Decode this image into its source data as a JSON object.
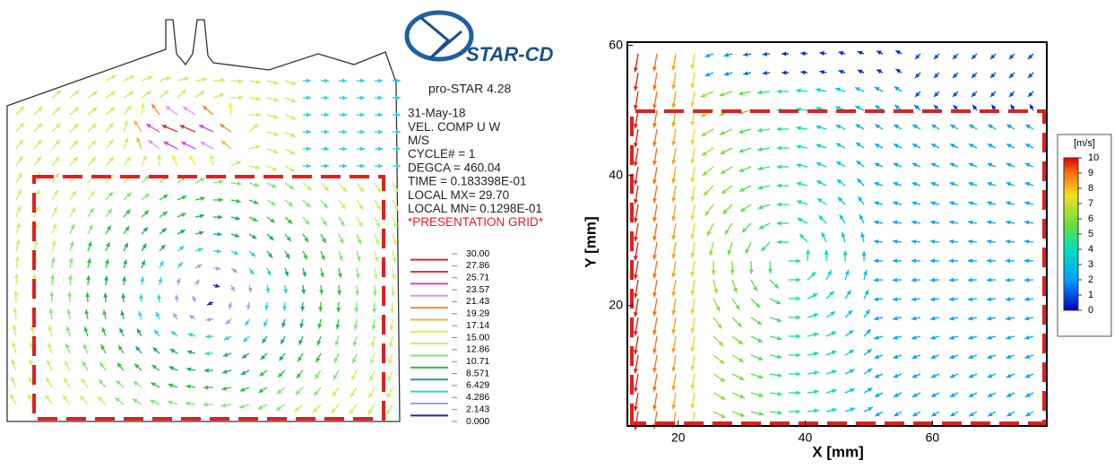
{
  "chart_data": [
    {
      "type": "vector-field",
      "logo": "STAR-CD",
      "subtitle": "pro-STAR 4.28",
      "info": [
        "31-May-18",
        "VEL. COMP  U W",
        "M/S",
        "CYCLE# =      1",
        "DEGCA  =   460.04",
        "TIME = 0.183398E-01",
        "LOCAL MX=  29.70",
        "LOCAL MN= 0.1298E-01"
      ],
      "note": "*PRESENTATION GRID*",
      "legend_ticks": [
        {
          "value": 30,
          "label": "30.00"
        },
        {
          "value": 27.86,
          "label": "27.86"
        },
        {
          "value": 25.71,
          "label": "25.71"
        },
        {
          "value": 23.57,
          "label": "23.57"
        },
        {
          "value": 21.43,
          "label": "21.43"
        },
        {
          "value": 19.29,
          "label": "19.29"
        },
        {
          "value": 17.14,
          "label": "17.14"
        },
        {
          "value": 15,
          "label": "15.00"
        },
        {
          "value": 12.86,
          "label": "12.86"
        },
        {
          "value": 10.71,
          "label": "10.71"
        },
        8.571,
        6.429,
        4.286,
        2.143,
        {
          "value": 0,
          "label": "0.000"
        }
      ],
      "legend_colors": [
        "#e8262c",
        "#f0303a",
        "#e040e0",
        "#f090e0",
        "#f58a3a",
        "#f5b040",
        "#f0f030",
        "#c8f060",
        "#80e870",
        "#30c040",
        "#20a090",
        "#30d0e0",
        "#a0a0f0",
        "#2020d0"
      ]
    },
    {
      "type": "vector-field",
      "xlabel": "X [mm]",
      "ylabel": "Y [mm]",
      "xlim": [
        12,
        78
      ],
      "ylim": [
        1.5,
        60.5
      ],
      "xticks": [
        20,
        40,
        60
      ],
      "yticks": [
        20,
        40,
        60
      ],
      "colorbar_label": "[m/s]",
      "clim": [
        0,
        10
      ],
      "cticks": [
        0,
        1,
        2,
        3,
        4,
        5,
        6,
        7,
        8,
        9,
        10
      ]
    }
  ]
}
